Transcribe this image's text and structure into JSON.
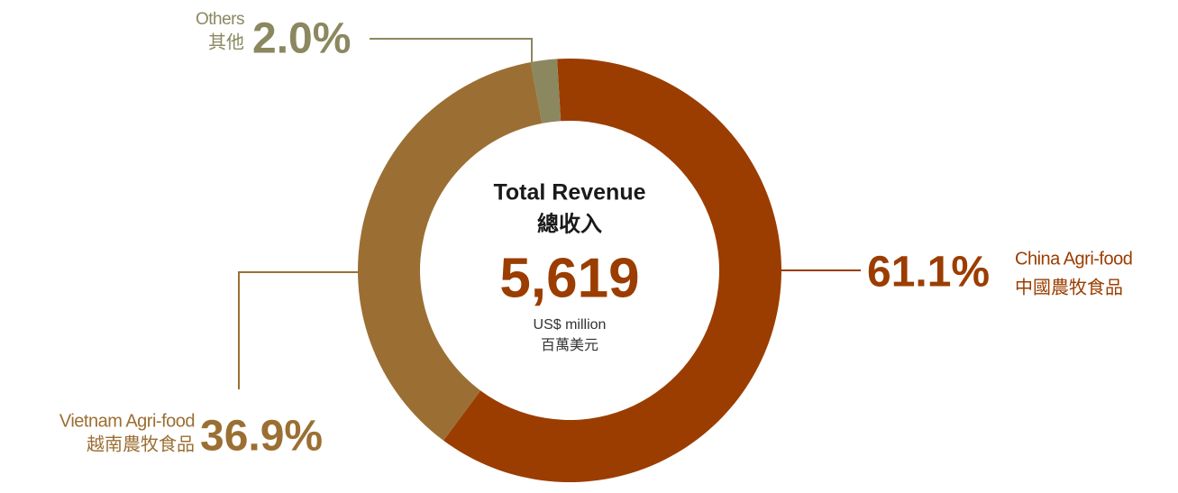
{
  "chart_data": {
    "type": "pie",
    "donut": true,
    "categories": [
      "China Agri-food",
      "Vietnam Agri-food",
      "Others"
    ],
    "categories_zh": [
      "中國農牧食品",
      "越南農牧食品",
      "其他"
    ],
    "values": [
      61.1,
      36.9,
      2.0
    ],
    "value_labels": [
      "61.1%",
      "36.9%",
      "2.0%"
    ],
    "colors": [
      "#9b3d00",
      "#9b6f33",
      "#8b8860"
    ],
    "center": {
      "title": "Total Revenue",
      "title_zh": "總收入",
      "value": "5,619",
      "unit": "US$ million",
      "unit_zh": "百萬美元"
    }
  }
}
